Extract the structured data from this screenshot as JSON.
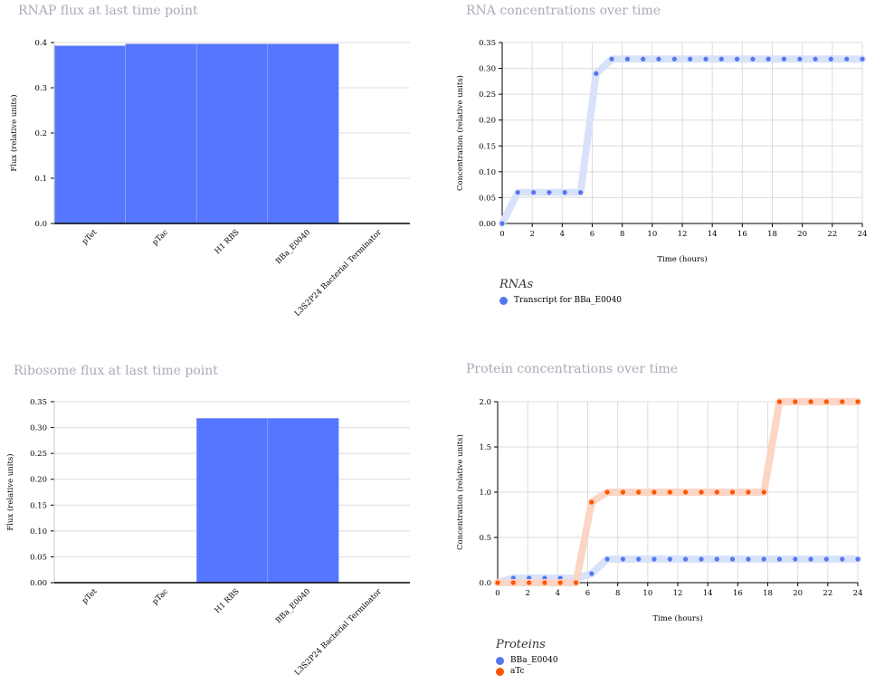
{
  "chart_data": [
    {
      "id": "rnap",
      "type": "bar",
      "title": "RNAP flux at last time point",
      "ylabel": "Flux (relative units)",
      "categories": [
        "pTet",
        "pTac",
        "H1 RBS",
        "BBa_E0040",
        "L3S2P24 Bacterial Terminator"
      ],
      "values": [
        0.393,
        0.397,
        0.397,
        0.397,
        0.0
      ],
      "ylim": [
        0,
        0.4
      ],
      "yticks": [
        0.0,
        0.1,
        0.2,
        0.3,
        0.4
      ],
      "ytick_labels": [
        "0.0",
        "0.1",
        "0.2",
        "0.3",
        "0.4"
      ],
      "color": "#5577ff",
      "grid": true
    },
    {
      "id": "ribosome",
      "type": "bar",
      "title": "Ribosome flux at last time point",
      "ylabel": "Flux (relative units)",
      "categories": [
        "pTet",
        "pTac",
        "H1 RBS",
        "BBa_E0040",
        "L3S2P24 Bacterial Terminator"
      ],
      "values": [
        0.0,
        0.0,
        0.318,
        0.318,
        0.0
      ],
      "ylim": [
        0,
        0.35
      ],
      "yticks": [
        0.0,
        0.05,
        0.1,
        0.15,
        0.2,
        0.25,
        0.3,
        0.35
      ],
      "ytick_labels": [
        "0.00",
        "0.05",
        "0.10",
        "0.15",
        "0.20",
        "0.25",
        "0.30",
        "0.35"
      ],
      "color": "#5577ff",
      "grid": true
    },
    {
      "id": "rna",
      "type": "line",
      "title": "RNA concentrations over time",
      "xlabel": "Time (hours)",
      "ylabel": "Concentration (relative units)",
      "xlim": [
        0,
        24
      ],
      "ylim": [
        0,
        0.35
      ],
      "xticks": [
        0,
        2,
        4,
        6,
        8,
        10,
        12,
        14,
        16,
        18,
        20,
        22,
        24
      ],
      "yticks": [
        0.0,
        0.05,
        0.1,
        0.15,
        0.2,
        0.25,
        0.3,
        0.35
      ],
      "ytick_labels": [
        "0.00",
        "0.05",
        "0.10",
        "0.15",
        "0.20",
        "0.25",
        "0.30",
        "0.35"
      ],
      "legend_title": "RNAs",
      "x": [
        0,
        1.04,
        2.09,
        3.13,
        4.17,
        5.22,
        6.26,
        7.3,
        8.35,
        9.39,
        10.43,
        11.48,
        12.52,
        13.57,
        14.61,
        15.65,
        16.7,
        17.74,
        18.78,
        19.83,
        20.87,
        21.91,
        22.96,
        24
      ],
      "series": [
        {
          "name": "Transcript for BBa_E0040",
          "color": "#5577ee",
          "band": "#d9e2fb",
          "values": [
            0,
            0.06,
            0.06,
            0.06,
            0.06,
            0.06,
            0.29,
            0.318,
            0.318,
            0.318,
            0.318,
            0.318,
            0.318,
            0.318,
            0.318,
            0.318,
            0.318,
            0.318,
            0.318,
            0.318,
            0.318,
            0.318,
            0.318,
            0.318
          ]
        }
      ],
      "grid": true
    },
    {
      "id": "protein",
      "type": "line",
      "title": "Protein concentrations over time",
      "xlabel": "Time (hours)",
      "ylabel": "Concentration (relative units)",
      "xlim": [
        0,
        24
      ],
      "ylim": [
        0,
        2.0
      ],
      "xticks": [
        0,
        2,
        4,
        6,
        8,
        10,
        12,
        14,
        16,
        18,
        20,
        22,
        24
      ],
      "yticks": [
        0.0,
        0.5,
        1.0,
        1.5,
        2.0
      ],
      "ytick_labels": [
        "0.0",
        "0.5",
        "1.0",
        "1.5",
        "2.0"
      ],
      "legend_title": "Proteins",
      "x": [
        0,
        1.04,
        2.09,
        3.13,
        4.17,
        5.22,
        6.26,
        7.3,
        8.35,
        9.39,
        10.43,
        11.48,
        12.52,
        13.57,
        14.61,
        15.65,
        16.7,
        17.74,
        18.78,
        19.83,
        20.87,
        21.91,
        22.96,
        24
      ],
      "series": [
        {
          "name": "BBa_E0040",
          "color": "#5577ee",
          "band": "#d9e2fb",
          "values": [
            0,
            0.05,
            0.05,
            0.05,
            0.05,
            0.05,
            0.1,
            0.26,
            0.26,
            0.26,
            0.26,
            0.26,
            0.26,
            0.26,
            0.26,
            0.26,
            0.26,
            0.26,
            0.26,
            0.26,
            0.26,
            0.26,
            0.26,
            0.26
          ]
        },
        {
          "name": "aTc",
          "color": "#ff5500",
          "band": "#fcd5c4",
          "values": [
            0,
            0,
            0,
            0,
            0,
            0,
            0.89,
            1.0,
            1.0,
            1.0,
            1.0,
            1.0,
            1.0,
            1.0,
            1.0,
            1.0,
            1.0,
            1.0,
            2.0,
            2.0,
            2.0,
            2.0,
            2.0,
            2.0
          ]
        }
      ],
      "grid": true
    }
  ]
}
